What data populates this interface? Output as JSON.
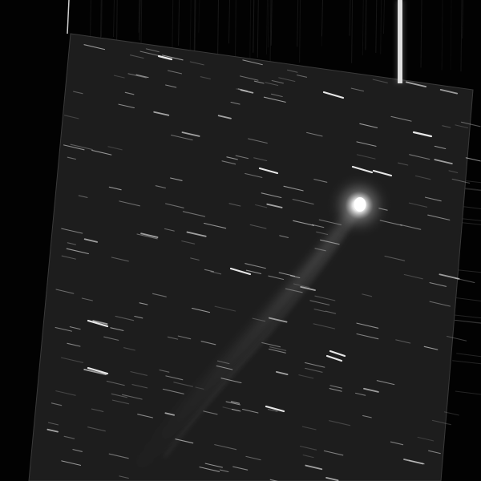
{
  "image": {
    "subject": "comet-with-tail-in-star-field",
    "colors": {
      "background": "#020202",
      "frame_fill": "#1d1d1d",
      "frame_edge": "#3a3a3a",
      "star": "#d8d8d8",
      "comet_core": "#ffffff",
      "comet_tail": "#bdbdbd"
    }
  }
}
